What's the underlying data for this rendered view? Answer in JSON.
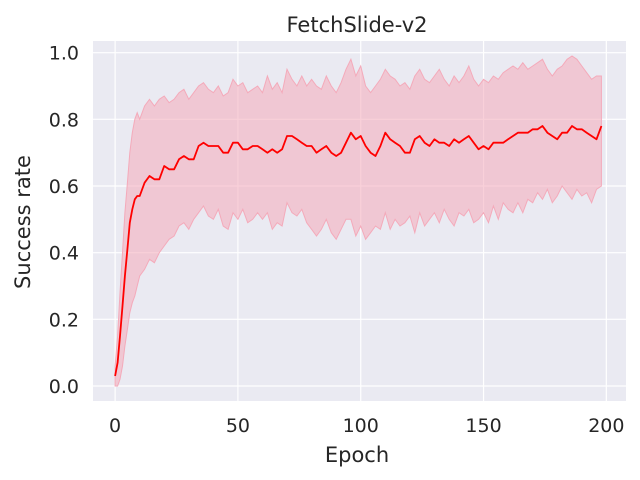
{
  "chart_data": {
    "type": "line",
    "title": "FetchSlide-v2",
    "xlabel": "Epoch",
    "ylabel": "Success rate",
    "xlim": [
      -9,
      208
    ],
    "ylim": [
      -0.045,
      1.035
    ],
    "xticks": [
      0,
      50,
      100,
      150,
      200
    ],
    "yticks": [
      0.0,
      0.2,
      0.4,
      0.6,
      0.8,
      1.0
    ],
    "xtick_labels": [
      "0",
      "50",
      "100",
      "150",
      "200"
    ],
    "ytick_labels": [
      "0.0",
      "0.2",
      "0.4",
      "0.6",
      "0.8",
      "1.0"
    ],
    "grid": true,
    "background": "#eaeaf2",
    "colors": {
      "line": "#ff0000",
      "band": "#f4aaba",
      "grid": "#ffffff"
    },
    "series": [
      {
        "x": [
          0,
          1,
          2,
          3,
          4,
          5,
          6,
          7,
          8,
          9,
          10,
          12,
          14,
          16,
          18,
          20,
          22,
          24,
          26,
          28,
          30,
          32,
          34,
          36,
          38,
          40,
          42,
          44,
          46,
          48,
          50,
          52,
          54,
          56,
          58,
          60,
          62,
          64,
          66,
          68,
          70,
          72,
          74,
          76,
          78,
          80,
          82,
          84,
          86,
          88,
          90,
          92,
          94,
          96,
          98,
          100,
          102,
          104,
          106,
          108,
          110,
          112,
          114,
          116,
          118,
          120,
          122,
          124,
          126,
          128,
          130,
          132,
          134,
          136,
          138,
          140,
          142,
          144,
          146,
          148,
          150,
          152,
          154,
          156,
          158,
          160,
          162,
          164,
          166,
          168,
          170,
          172,
          174,
          176,
          178,
          180,
          182,
          184,
          186,
          188,
          190,
          192,
          194,
          196,
          198
        ],
        "y": [
          0.03,
          0.07,
          0.15,
          0.24,
          0.33,
          0.41,
          0.49,
          0.53,
          0.56,
          0.57,
          0.57,
          0.61,
          0.63,
          0.62,
          0.62,
          0.66,
          0.65,
          0.65,
          0.68,
          0.69,
          0.68,
          0.68,
          0.72,
          0.73,
          0.72,
          0.72,
          0.72,
          0.7,
          0.7,
          0.73,
          0.73,
          0.71,
          0.71,
          0.72,
          0.72,
          0.71,
          0.7,
          0.71,
          0.7,
          0.71,
          0.75,
          0.75,
          0.74,
          0.73,
          0.72,
          0.72,
          0.7,
          0.71,
          0.72,
          0.7,
          0.69,
          0.7,
          0.73,
          0.76,
          0.74,
          0.75,
          0.72,
          0.7,
          0.69,
          0.72,
          0.76,
          0.74,
          0.73,
          0.72,
          0.7,
          0.7,
          0.74,
          0.75,
          0.73,
          0.72,
          0.74,
          0.73,
          0.73,
          0.72,
          0.74,
          0.73,
          0.74,
          0.75,
          0.73,
          0.71,
          0.72,
          0.71,
          0.73,
          0.73,
          0.73,
          0.74,
          0.75,
          0.76,
          0.76,
          0.76,
          0.77,
          0.77,
          0.78,
          0.76,
          0.75,
          0.74,
          0.76,
          0.76,
          0.78,
          0.77,
          0.77,
          0.76,
          0.75,
          0.74,
          0.78
        ],
        "lower": [
          0.0,
          0.0,
          0.02,
          0.06,
          0.12,
          0.17,
          0.22,
          0.25,
          0.27,
          0.3,
          0.33,
          0.35,
          0.38,
          0.37,
          0.4,
          0.42,
          0.44,
          0.45,
          0.48,
          0.49,
          0.47,
          0.5,
          0.52,
          0.54,
          0.51,
          0.5,
          0.53,
          0.48,
          0.47,
          0.52,
          0.5,
          0.53,
          0.49,
          0.5,
          0.52,
          0.5,
          0.52,
          0.47,
          0.49,
          0.48,
          0.55,
          0.52,
          0.51,
          0.53,
          0.49,
          0.47,
          0.45,
          0.47,
          0.5,
          0.46,
          0.44,
          0.47,
          0.5,
          0.5,
          0.45,
          0.48,
          0.44,
          0.46,
          0.48,
          0.47,
          0.52,
          0.47,
          0.5,
          0.48,
          0.49,
          0.51,
          0.46,
          0.52,
          0.48,
          0.5,
          0.52,
          0.49,
          0.53,
          0.5,
          0.48,
          0.52,
          0.51,
          0.53,
          0.49,
          0.5,
          0.52,
          0.49,
          0.54,
          0.5,
          0.55,
          0.53,
          0.52,
          0.55,
          0.52,
          0.56,
          0.55,
          0.58,
          0.56,
          0.59,
          0.55,
          0.57,
          0.6,
          0.58,
          0.56,
          0.59,
          0.57,
          0.58,
          0.55,
          0.59,
          0.6
        ],
        "upper": [
          0.06,
          0.15,
          0.28,
          0.4,
          0.52,
          0.61,
          0.7,
          0.76,
          0.8,
          0.82,
          0.8,
          0.84,
          0.86,
          0.84,
          0.86,
          0.87,
          0.85,
          0.86,
          0.88,
          0.89,
          0.86,
          0.88,
          0.9,
          0.91,
          0.89,
          0.88,
          0.9,
          0.87,
          0.88,
          0.92,
          0.9,
          0.91,
          0.88,
          0.89,
          0.9,
          0.88,
          0.93,
          0.89,
          0.91,
          0.88,
          0.95,
          0.92,
          0.9,
          0.93,
          0.9,
          0.92,
          0.9,
          0.89,
          0.93,
          0.9,
          0.88,
          0.91,
          0.95,
          0.98,
          0.93,
          0.96,
          0.9,
          0.88,
          0.9,
          0.92,
          0.95,
          0.93,
          0.92,
          0.9,
          0.91,
          0.89,
          0.93,
          0.95,
          0.92,
          0.91,
          0.93,
          0.95,
          0.92,
          0.9,
          0.93,
          0.91,
          0.93,
          0.96,
          0.92,
          0.9,
          0.92,
          0.91,
          0.93,
          0.92,
          0.94,
          0.95,
          0.96,
          0.95,
          0.97,
          0.95,
          0.96,
          0.97,
          0.98,
          0.95,
          0.93,
          0.95,
          0.96,
          0.98,
          0.99,
          0.98,
          0.96,
          0.94,
          0.92,
          0.93,
          0.93
        ]
      }
    ]
  }
}
